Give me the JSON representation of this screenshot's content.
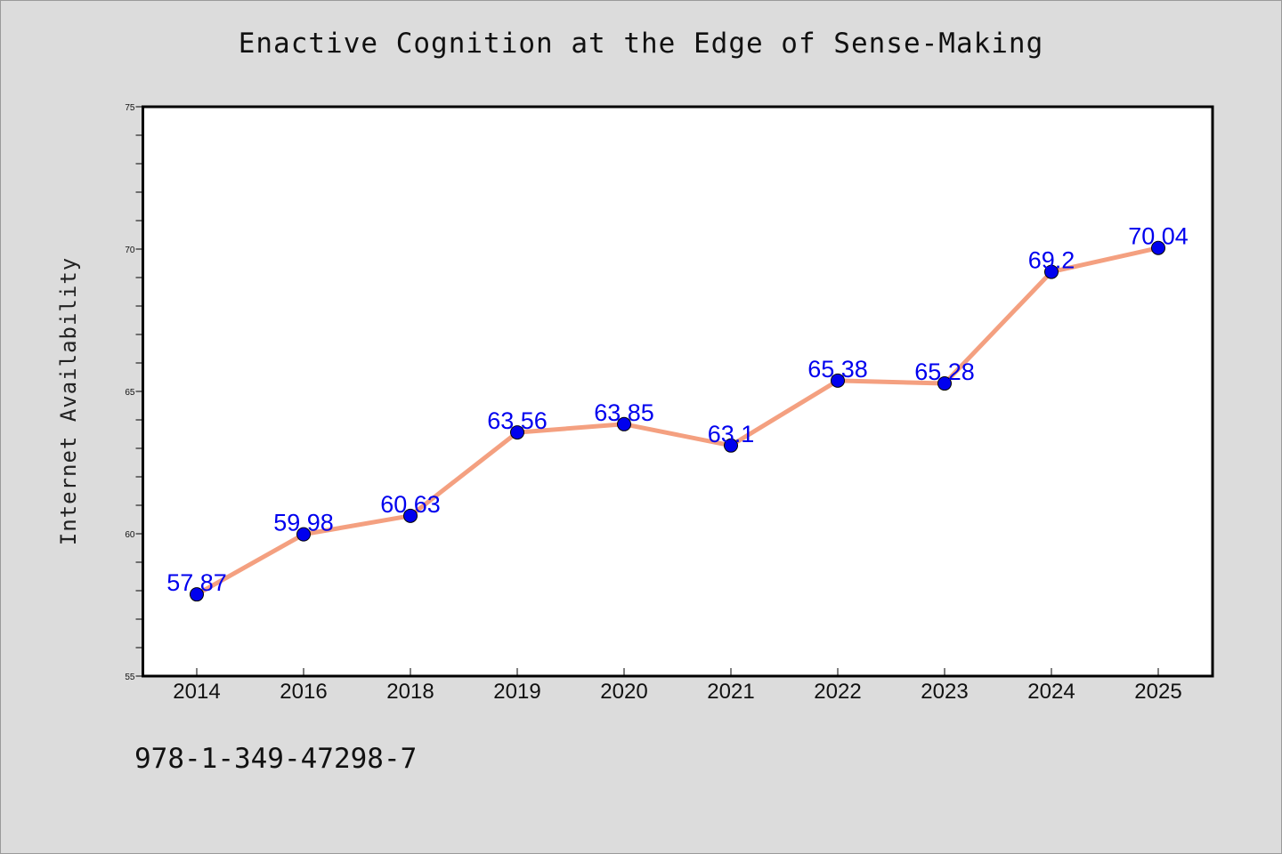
{
  "page": {
    "footer_code": "978-1-349-47298-7"
  },
  "colors": {
    "background": "#dcdcdc",
    "plot_background": "#ffffff",
    "line": "#f4a080",
    "marker": "#0000ee",
    "data_label": "#0000ee"
  },
  "chart_data": {
    "type": "line",
    "title": "Enactive Cognition at the Edge of Sense-Making",
    "xlabel": "",
    "ylabel": "Internet Availability",
    "categories": [
      "2014",
      "2016",
      "2018",
      "2019",
      "2020",
      "2021",
      "2022",
      "2023",
      "2024",
      "2025"
    ],
    "series": [
      {
        "values": [
          57.87,
          59.98,
          60.63,
          63.56,
          63.85,
          63.1,
          65.38,
          65.28,
          69.2,
          70.04
        ],
        "data_labels": [
          "57.87",
          "59.98",
          "60.63",
          "63.56",
          "63.85",
          "63.1",
          "65.38",
          "65.28",
          "69.2",
          "70.04"
        ]
      }
    ],
    "ylim": [
      55,
      75
    ],
    "y_major_ticks": [
      "55",
      "60",
      "65",
      "70",
      "75"
    ],
    "y_minor_step": 1,
    "grid": false,
    "legend": "none"
  }
}
